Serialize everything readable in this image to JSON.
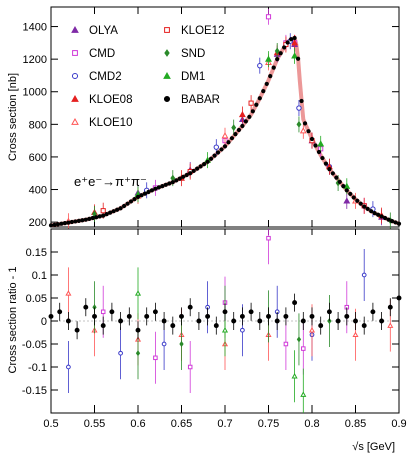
{
  "chart_data": [
    {
      "panel": "top",
      "type": "scatter",
      "ylabel": "Cross section   [nb]",
      "ylim": [
        170,
        1520
      ],
      "xlim": [
        0.5,
        0.9
      ],
      "yticks": [
        200,
        400,
        600,
        800,
        1000,
        1200,
        1400
      ],
      "annotation": {
        "text": "e⁺e⁻→π⁺π⁻"
      },
      "grid": false,
      "legend_placement": "top-left",
      "series": [
        {
          "name": "OLYA",
          "color": "#7f2aa6",
          "marker": "triangle",
          "x": [
            0.6,
            0.66,
            0.72,
            0.76,
            0.78,
            0.8,
            0.84,
            0.88
          ],
          "y": [
            380,
            520,
            830,
            1230,
            1290,
            700,
            330,
            230
          ]
        },
        {
          "name": "CMD",
          "color": "#d039d8",
          "marker": "square-open",
          "x": [
            0.62,
            0.7,
            0.75,
            0.77,
            0.78,
            0.81,
            0.86
          ],
          "y": [
            410,
            700,
            1460,
            1300,
            1300,
            650,
            300
          ]
        },
        {
          "name": "CMD2",
          "color": "#3838c8",
          "marker": "circle-open",
          "x": [
            0.61,
            0.69,
            0.74,
            0.775,
            0.785,
            0.82,
            0.87
          ],
          "y": [
            395,
            660,
            1160,
            1310,
            900,
            540,
            280
          ]
        },
        {
          "name": "KLOE08",
          "color": "#e52020",
          "marker": "triangle",
          "x": [
            0.55,
            0.65,
            0.72,
            0.76,
            0.78,
            0.82,
            0.88
          ],
          "y": [
            260,
            470,
            860,
            1240,
            1300,
            540,
            240
          ]
        },
        {
          "name": "KLOE10",
          "color": "#ff5555",
          "marker": "triangle-open",
          "x": [
            0.52,
            0.6,
            0.7,
            0.75,
            0.79,
            0.85
          ],
          "y": [
            205,
            360,
            730,
            1180,
            760,
            330
          ]
        },
        {
          "name": "KLOE12",
          "color": "#e52020",
          "marker": "square-open",
          "x": [
            0.56,
            0.66,
            0.73,
            0.77,
            0.8,
            0.86
          ],
          "y": [
            270,
            510,
            930,
            1290,
            700,
            300
          ]
        },
        {
          "name": "SND",
          "color": "#2a8a2a",
          "marker": "diamond",
          "x": [
            0.55,
            0.64,
            0.71,
            0.76,
            0.785,
            0.83,
            0.89
          ],
          "y": [
            250,
            470,
            780,
            1250,
            800,
            440,
            210
          ]
        },
        {
          "name": "DM1",
          "color": "#22aa22",
          "marker": "triangle",
          "x": [
            0.6,
            0.68,
            0.75,
            0.78,
            0.81,
            0.84
          ],
          "y": [
            370,
            580,
            1200,
            1220,
            680,
            420
          ]
        },
        {
          "name": "BABAR",
          "color": "#000000",
          "marker": "circle",
          "x": [
            0.5,
            0.52,
            0.54,
            0.56,
            0.58,
            0.6,
            0.62,
            0.64,
            0.66,
            0.68,
            0.7,
            0.72,
            0.73,
            0.74,
            0.75,
            0.76,
            0.77,
            0.775,
            0.78,
            0.783,
            0.787,
            0.79,
            0.8,
            0.81,
            0.82,
            0.83,
            0.84,
            0.85,
            0.86,
            0.87,
            0.88,
            0.89,
            0.9
          ],
          "y": [
            180,
            197,
            215,
            240,
            285,
            355,
            405,
            445,
            500,
            570,
            665,
            790,
            860,
            960,
            1070,
            1200,
            1290,
            1320,
            1330,
            1270,
            1000,
            830,
            710,
            610,
            525,
            460,
            395,
            340,
            295,
            260,
            235,
            210,
            190
          ]
        }
      ]
    },
    {
      "panel": "bottom",
      "type": "scatter",
      "xlabel": "√s  [GeV]",
      "ylabel": "Cross section ratio - 1",
      "ylim": [
        -0.2,
        0.2
      ],
      "xlim": [
        0.5,
        0.9
      ],
      "yticks": [
        -0.15,
        -0.1,
        -0.05,
        0,
        0.05,
        0.1,
        0.15
      ],
      "ytick_labels": [
        "-0.15",
        "-0.1",
        "-0.05",
        "0",
        "0.05",
        "0.1",
        "0.15"
      ],
      "xticks": [
        0.5,
        0.55,
        0.6,
        0.65,
        0.7,
        0.75,
        0.8,
        0.85,
        0.9
      ],
      "xtick_labels": [
        "0.5",
        "0.55",
        "0.6",
        "0.65",
        "0.7",
        "0.75",
        "0.8",
        "0.85",
        "0.9"
      ],
      "grid": false,
      "series": [
        {
          "name": "CMD",
          "color": "#d039d8",
          "x": [
            0.56,
            0.62,
            0.66,
            0.7,
            0.75,
            0.77,
            0.79,
            0.84
          ],
          "y": [
            0.02,
            -0.08,
            -0.1,
            0.04,
            0.18,
            -0.05,
            -0.06,
            0.03
          ]
        },
        {
          "name": "CMD2",
          "color": "#3838c8",
          "x": [
            0.52,
            0.58,
            0.63,
            0.68,
            0.72,
            0.76,
            0.8,
            0.86
          ],
          "y": [
            -0.1,
            -0.07,
            -0.05,
            0.03,
            -0.02,
            0.02,
            -0.03,
            0.1
          ]
        },
        {
          "name": "KLOE10",
          "color": "#ff5555",
          "x": [
            0.52,
            0.55,
            0.6,
            0.65,
            0.7,
            0.75,
            0.8,
            0.85,
            0.89
          ],
          "y": [
            0.06,
            -0.02,
            -0.04,
            -0.03,
            -0.05,
            -0.03,
            -0.02,
            -0.03,
            -0.01
          ]
        },
        {
          "name": "SND",
          "color": "#2a8a2a",
          "x": [
            0.55,
            0.6,
            0.65,
            0.7,
            0.75,
            0.785,
            0.82
          ],
          "y": [
            0.03,
            -0.07,
            -0.05,
            0.02,
            0.01,
            -0.04,
            0.0
          ]
        },
        {
          "name": "DM1",
          "color": "#22aa22",
          "x": [
            0.6,
            0.7,
            0.78,
            0.79
          ],
          "y": [
            0.06,
            -0.02,
            -0.12,
            -0.16
          ]
        },
        {
          "name": "BABAR",
          "color": "#000000",
          "x": [
            0.5,
            0.51,
            0.52,
            0.53,
            0.54,
            0.55,
            0.56,
            0.57,
            0.58,
            0.59,
            0.6,
            0.61,
            0.62,
            0.63,
            0.64,
            0.65,
            0.66,
            0.67,
            0.68,
            0.69,
            0.7,
            0.71,
            0.72,
            0.73,
            0.74,
            0.75,
            0.76,
            0.77,
            0.78,
            0.79,
            0.8,
            0.81,
            0.82,
            0.83,
            0.84,
            0.85,
            0.86,
            0.87,
            0.88,
            0.89,
            0.9
          ],
          "y": [
            0.01,
            0.02,
            0.0,
            -0.02,
            0.03,
            0.01,
            -0.01,
            0.02,
            0.0,
            0.01,
            -0.02,
            0.01,
            0.02,
            0.0,
            -0.01,
            0.01,
            0.03,
            0.0,
            0.01,
            -0.01,
            0.02,
            0.0,
            0.01,
            0.02,
            0.0,
            0.01,
            0.0,
            0.01,
            0.04,
            0.0,
            0.01,
            -0.01,
            0.02,
            0.0,
            0.01,
            0.0,
            -0.01,
            0.02,
            0.0,
            0.03,
            0.05
          ]
        }
      ]
    }
  ]
}
